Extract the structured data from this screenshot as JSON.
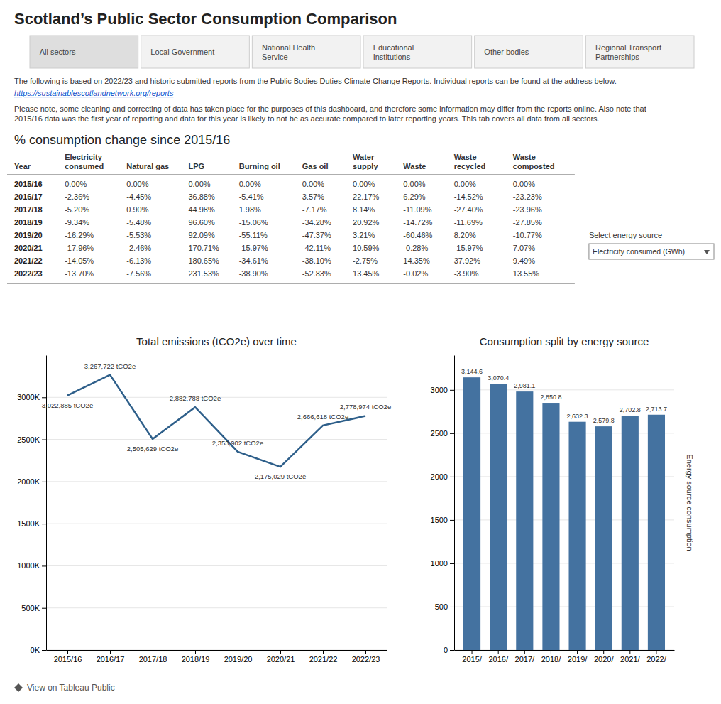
{
  "title": "Scotland’s Public Sector Consumption Comparison",
  "nav_tabs": [
    "All sectors",
    "Local Government",
    "National Health\nService",
    "Educational\nInstitutions",
    "Other bodies",
    "Regional Transport\nPartnerships"
  ],
  "info_text": "The following is based on 2022/23 and historic submitted reports from the Public Bodies Duties Climate Change Reports. Individual reports can be found at the address below.",
  "link_text": "https://sustainablescotlandnetwork.org/reports",
  "note_text": "Please note, some cleaning and correcting of data has taken place for the purposes of this dashboard, and therefore some information may differ from the reports online. Also note that\n2015/16 data was the first year of reporting and data for this year is likely to not be as accurate compared to later reporting years. This tab covers all data from all sectors.",
  "table": {
    "title": "% consumption change since 2015/16",
    "headers": [
      "Year",
      "Electricity\nconsumed",
      "Natural gas",
      "LPG",
      "Burning oil",
      "Gas oil",
      "Water\nsupply",
      "Waste",
      "Waste\nrecycled",
      "Waste\ncomposted"
    ],
    "rows": [
      [
        "2015/16",
        "0.00%",
        "0.00%",
        "0.00%",
        "0.00%",
        "0.00%",
        "0.00%",
        "0.00%",
        "0.00%",
        "0.00%"
      ],
      [
        "2016/17",
        "-2.36%",
        "-4.45%",
        "36.88%",
        "-5.41%",
        "3.57%",
        "22.17%",
        "6.29%",
        "-14.52%",
        "-23.23%"
      ],
      [
        "2017/18",
        "-5.20%",
        "0.90%",
        "44.98%",
        "1.98%",
        "-7.17%",
        "8.14%",
        "-11.09%",
        "-27.40%",
        "-23.96%"
      ],
      [
        "2018/19",
        "-9.34%",
        "-5.48%",
        "96.60%",
        "-15.06%",
        "-34.28%",
        "20.92%",
        "-14.72%",
        "-11.69%",
        "-27.85%"
      ],
      [
        "2019/20",
        "-16.29%",
        "-5.53%",
        "92.09%",
        "-55.11%",
        "-47.37%",
        "3.21%",
        "-60.46%",
        "8.20%",
        "-10.77%"
      ],
      [
        "2020/21",
        "-17.96%",
        "-2.46%",
        "170.71%",
        "-15.97%",
        "-42.11%",
        "10.59%",
        "-0.28%",
        "-15.97%",
        "7.07%"
      ],
      [
        "2021/22",
        "-14.05%",
        "-6.13%",
        "180.65%",
        "-34.61%",
        "-38.10%",
        "-2.75%",
        "14.35%",
        "37.92%",
        "9.49%"
      ],
      [
        "2022/23",
        "-13.70%",
        "-7.56%",
        "231.53%",
        "-38.90%",
        "-52.83%",
        "13.45%",
        "-0.02%",
        "-3.90%",
        "13.55%"
      ]
    ]
  },
  "select_label": "Select energy source",
  "dropdown_text": "Electricity consumed (GWh)",
  "footer_text": "View on Tableau Public",
  "chart_data": [
    {
      "type": "line",
      "title": "Total emissions (tCO2e) over time",
      "categories": [
        "2015/16",
        "2016/17",
        "2017/18",
        "2018/19",
        "2019/20",
        "2020/21",
        "2021/22",
        "2022/23"
      ],
      "values": [
        3022885,
        3267722,
        2505629,
        2882788,
        2353902,
        2175029,
        2666618,
        2778974
      ],
      "value_labels": [
        "3,022,885 tCO2e",
        "3,267,722 tCO2e",
        "2,505,629 tCO2e",
        "2,882,788 tCO2e",
        "2,353,902 tCO2e",
        "2,175,029 tCO2e",
        "2,666,618 tCO2e",
        "2,778,974 tCO2e"
      ],
      "data_labels": true,
      "color": "#2e5f8a",
      "ylim": [
        0,
        3500000
      ],
      "yticks": [
        {
          "value": 0,
          "label": "0K"
        },
        {
          "value": 500000,
          "label": "500K"
        },
        {
          "value": 1000000,
          "label": "1000K"
        },
        {
          "value": 1500000,
          "label": "1500K"
        },
        {
          "value": 2000000,
          "label": "2000K"
        },
        {
          "value": 2500000,
          "label": "2500K"
        },
        {
          "value": 3000000,
          "label": "3000K"
        }
      ],
      "grid": true
    },
    {
      "type": "bar",
      "title": "Consumption split by energy source",
      "categories": [
        "2015/",
        "2016/",
        "2017/",
        "2018/",
        "2019/",
        "2020/",
        "2021/",
        "2022/"
      ],
      "values": [
        3144.6,
        3070.4,
        2981.1,
        2850.8,
        2632.3,
        2579.8,
        2702.8,
        2713.7
      ],
      "value_labels": [
        "3,144.6",
        "3,070.4",
        "2,981.1",
        "2,850.8",
        "2,632.3",
        "2,579.8",
        "2,702.8",
        "2,713.7"
      ],
      "data_labels": true,
      "color": "#4472a0",
      "y_label": "Energy source consumption",
      "ylim": [
        0,
        3400
      ],
      "yticks": [
        0,
        500,
        1000,
        1500,
        2000,
        2500,
        3000
      ],
      "grid": true
    }
  ]
}
